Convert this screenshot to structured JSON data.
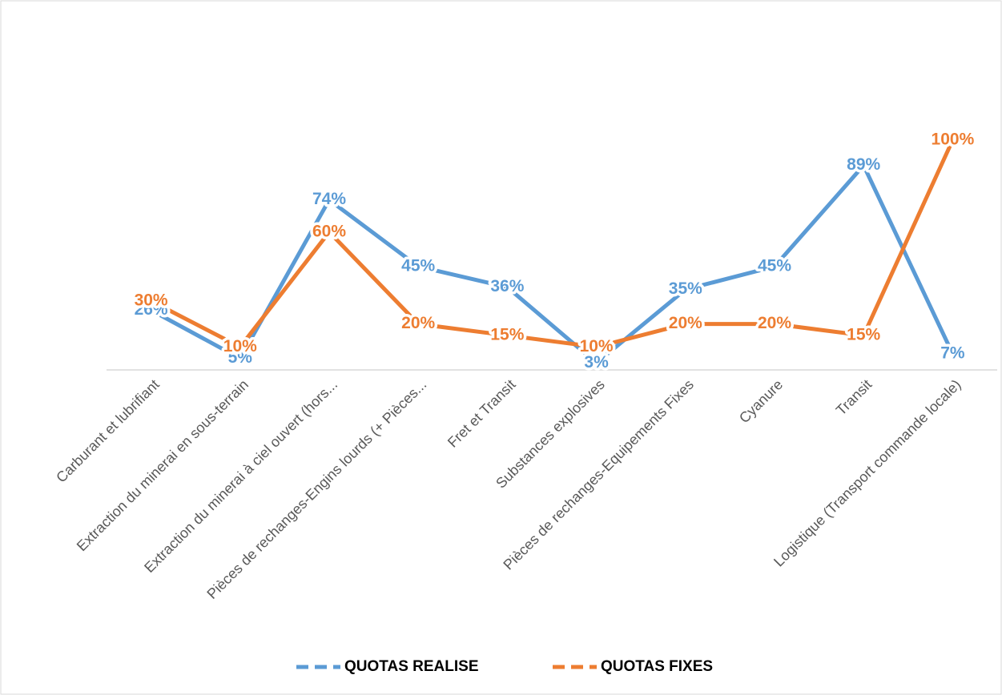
{
  "chart_data": {
    "type": "line",
    "categories": [
      "Carburant et lubrifiant",
      "Extraction du minerai en sous-terrain",
      "Extraction du minerai à ciel ouvert (hors...",
      "Pièces de rechanges-Engins lourds (+ Pièces...",
      "Fret et Transit",
      "Substances explosives",
      "Pièces de rechanges-Equipements Fixes",
      "Cyanure",
      "Transit",
      "Logistique (Transport commande locale)"
    ],
    "series": [
      {
        "name": "QUOTAS REALISE",
        "color": "#5b9bd5",
        "values": [
          26,
          5,
          74,
          45,
          36,
          3,
          35,
          45,
          89,
          7
        ],
        "value_labels": [
          "26%",
          "5%",
          "74%",
          "45%",
          "36%",
          "3%",
          "35%",
          "45%",
          "89%",
          "7%"
        ]
      },
      {
        "name": "QUOTAS FIXES",
        "color": "#ed7d31",
        "values": [
          30,
          10,
          60,
          20,
          15,
          10,
          20,
          20,
          15,
          100
        ],
        "value_labels": [
          "30%",
          "10%",
          "60%",
          "20%",
          "15%",
          "10%",
          "20%",
          "20%",
          "15%",
          "100%"
        ]
      }
    ],
    "ylim": [
      0,
      100
    ],
    "legend": "bottom"
  }
}
